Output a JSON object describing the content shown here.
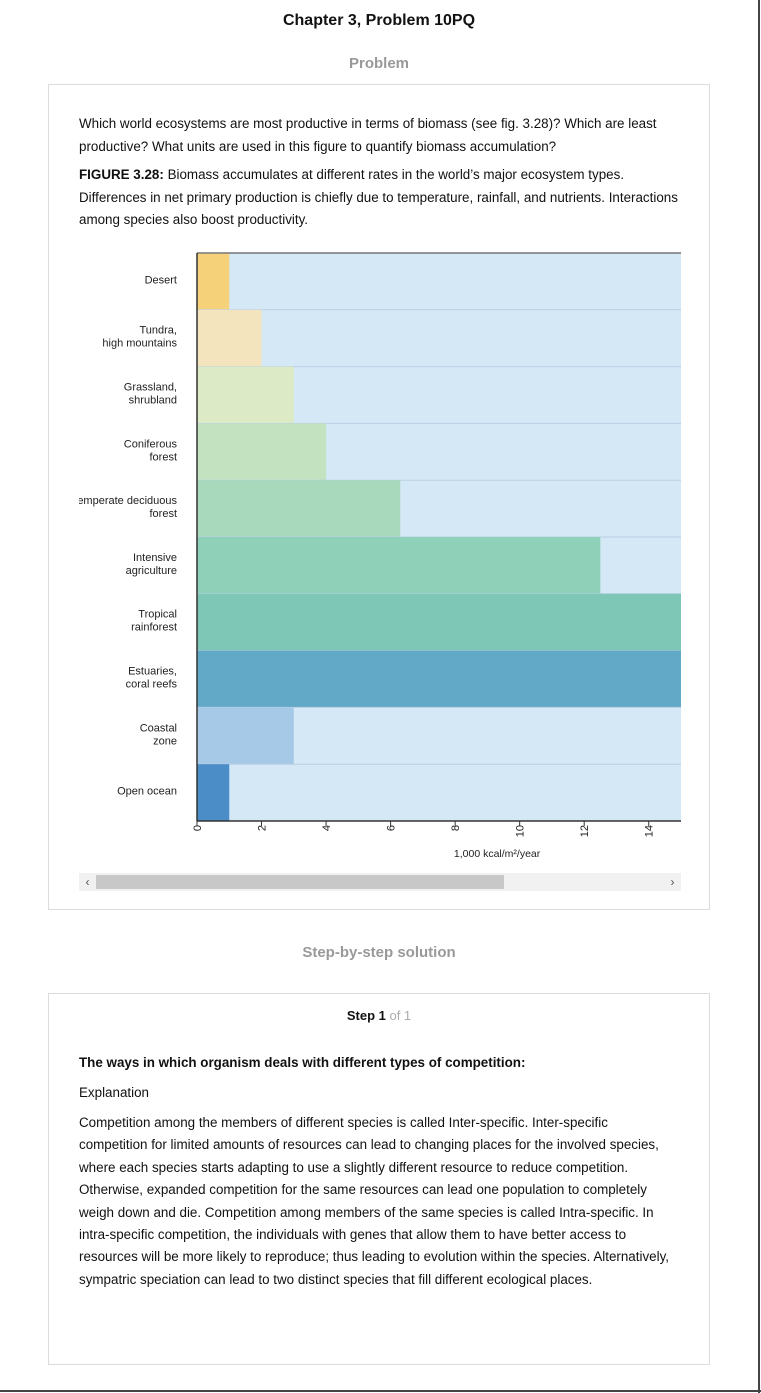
{
  "page": {
    "title": "Chapter 3, Problem 10PQ"
  },
  "problem": {
    "heading": "Problem",
    "question": "Which world ecosystems are most productive in terms of biomass (see fig. 3.28)? Which are least productive? What units are used in this figure to quantify biomass accumulation?",
    "figure_label": "FIGURE 3.28:",
    "figure_caption": " Biomass accumulates at different rates in the world’s major ecosystem types. Differences in net primary production is chiefly due to temperature, rainfall, and nutrients. Interactions among species also boost productivity."
  },
  "chart_data": {
    "type": "bar",
    "orientation": "horizontal",
    "categories": [
      "Desert",
      "Tundra, high mountains",
      "Grassland, shrubland",
      "Coniferous forest",
      "Temperate deciduous forest",
      "Intensive agriculture",
      "Tropical rainforest",
      "Estuaries, coral reefs",
      "Coastal zone",
      "Open ocean"
    ],
    "values": [
      1,
      2,
      3,
      4,
      6.3,
      12.5,
      15,
      15,
      3,
      1
    ],
    "xlabel": "1,000 kcal/m²/year",
    "xlim": [
      0,
      15
    ],
    "xticks": [
      0,
      2,
      4,
      6,
      8,
      10,
      12,
      14
    ],
    "colors": [
      "#f5d27a",
      "#f3e4bd",
      "#dcebc5",
      "#c3e2c0",
      "#a9d9bc",
      "#8fd0b8",
      "#7ec6b5",
      "#62a9c7",
      "#a6c9e8",
      "#4a8dc7"
    ],
    "background_color": "#d4e8f6",
    "grid": false
  },
  "ui": {
    "scroll_left_icon": "chevron-left-icon",
    "scroll_right_icon": "chevron-right-icon",
    "scroll_left": "‹",
    "scroll_right": "›"
  },
  "solution": {
    "heading": "Step-by-step solution",
    "step_label": "Step 1",
    "step_of": " of 1",
    "title": "The ways in which organism deals with different types of competition:",
    "explanation_label": "Explanation",
    "body": "Competition among the members of different species is called Inter-specific. Inter-specific competition for limited amounts of resources can lead to changing places for the involved species, where each species starts adapting to use a slightly different resource to reduce competition. Otherwise, expanded competition for the same resources can lead one population to completely weigh down and die. Competition among members of the same species is called Intra-specific. In intra-specific competition, the individuals with genes that allow them to have better access to resources will be more likely to reproduce; thus leading to evolution within the species. Alternatively, sympatric speciation can lead to two distinct species that fill different ecological places."
  }
}
